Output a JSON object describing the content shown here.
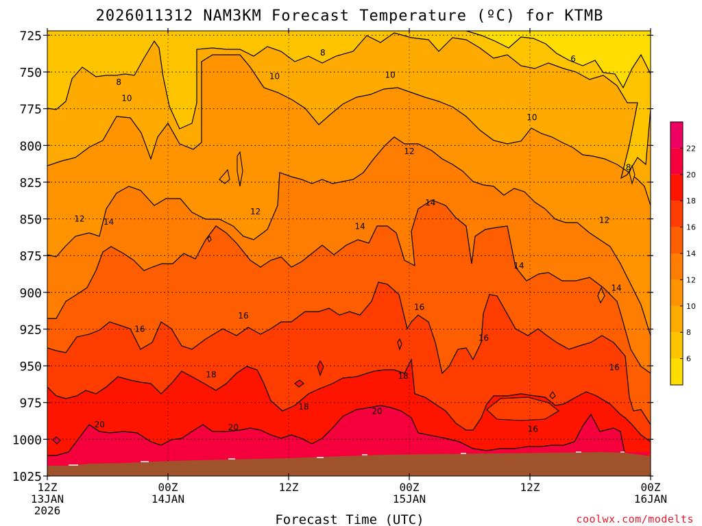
{
  "chart_data": {
    "type": "contour",
    "title": "2026011312 NAM3KM Forecast Temperature (ºC) for KTMB",
    "xlabel": "Forecast Time (UTC)",
    "ylabel": "",
    "credit": "coolwx.com/modelts",
    "x_ticks": [
      {
        "hour": 0,
        "line1": "12Z",
        "line2": "13JAN",
        "line3": "2026"
      },
      {
        "hour": 12,
        "line1": "00Z",
        "line2": "14JAN",
        "line3": ""
      },
      {
        "hour": 24,
        "line1": "12Z",
        "line2": "",
        "line3": ""
      },
      {
        "hour": 36,
        "line1": "00Z",
        "line2": "15JAN",
        "line3": ""
      },
      {
        "hour": 48,
        "line1": "12Z",
        "line2": "",
        "line3": ""
      },
      {
        "hour": 60,
        "line1": "00Z",
        "line2": "16JAN",
        "line3": ""
      }
    ],
    "xlim_hours": [
      0,
      60
    ],
    "y_ticks": [
      "725",
      "750",
      "775",
      "800",
      "825",
      "850",
      "875",
      "900",
      "925",
      "950",
      "975",
      "1000",
      "1025"
    ],
    "ylim_hpa": [
      722,
      1025
    ],
    "y_reversed": true,
    "grid": true,
    "colorbar": {
      "placement": "right",
      "levels": [
        4,
        6,
        8,
        10,
        12,
        14,
        16,
        18,
        20,
        22,
        24
      ],
      "tick_labels": [
        "6",
        "8",
        "10",
        "12",
        "14",
        "16",
        "18",
        "20",
        "22"
      ],
      "colors": [
        "#ffdd00",
        "#ffc400",
        "#ffaa00",
        "#ff9400",
        "#ff7d00",
        "#ff5e00",
        "#ff3d00",
        "#ff1400",
        "#f5003c",
        "#ee0062"
      ]
    },
    "contour_labels": [
      {
        "text": "8",
        "hour": 27.4,
        "p": 737
      },
      {
        "text": "6",
        "hour": 52.3,
        "p": 741
      },
      {
        "text": "8",
        "hour": 7.1,
        "p": 757
      },
      {
        "text": "10",
        "hour": 22.6,
        "p": 753
      },
      {
        "text": "10",
        "hour": 34.1,
        "p": 752
      },
      {
        "text": "10",
        "hour": 7.9,
        "p": 768
      },
      {
        "text": "10",
        "hour": 48.2,
        "p": 781
      },
      {
        "text": "12",
        "hour": 36.0,
        "p": 804
      },
      {
        "text": "8",
        "hour": 57.8,
        "p": 815
      },
      {
        "text": "14",
        "hour": 38.1,
        "p": 839
      },
      {
        "text": "12",
        "hour": 20.7,
        "p": 845
      },
      {
        "text": "12",
        "hour": 3.2,
        "p": 850
      },
      {
        "text": "14",
        "hour": 6.1,
        "p": 852
      },
      {
        "text": "12",
        "hour": 55.4,
        "p": 851
      },
      {
        "text": "14",
        "hour": 31.1,
        "p": 855
      },
      {
        "text": "14",
        "hour": 46.9,
        "p": 882
      },
      {
        "text": "14",
        "hour": 56.6,
        "p": 897
      },
      {
        "text": "16",
        "hour": 37.0,
        "p": 910
      },
      {
        "text": "16",
        "hour": 19.5,
        "p": 916
      },
      {
        "text": "16",
        "hour": 9.2,
        "p": 925
      },
      {
        "text": "16",
        "hour": 43.4,
        "p": 931
      },
      {
        "text": "18",
        "hour": 16.3,
        "p": 956
      },
      {
        "text": "18",
        "hour": 35.4,
        "p": 957
      },
      {
        "text": "16",
        "hour": 56.4,
        "p": 951
      },
      {
        "text": "18",
        "hour": 25.5,
        "p": 978
      },
      {
        "text": "20",
        "hour": 32.8,
        "p": 981
      },
      {
        "text": "20",
        "hour": 5.2,
        "p": 990
      },
      {
        "text": "20",
        "hour": 18.5,
        "p": 992
      },
      {
        "text": "16",
        "hour": 48.3,
        "p": 993
      }
    ]
  }
}
